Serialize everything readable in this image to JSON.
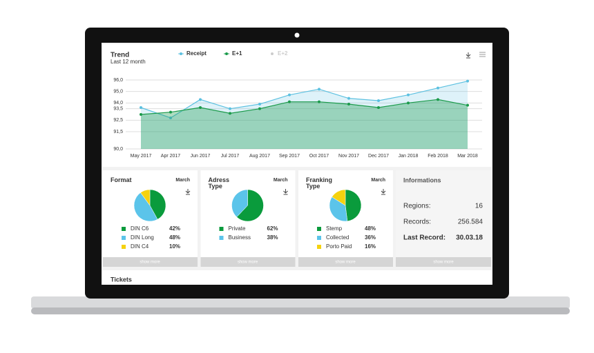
{
  "header": {
    "title": "Trend",
    "subtitle": "Last 12 month"
  },
  "chart_data": {
    "type": "line",
    "categories": [
      "May 2017",
      "Apr 2017",
      "Jun 2017",
      "Jul 2017",
      "Aug 2017",
      "Sep 2017",
      "Oct 2017",
      "Nov 2017",
      "Dec 2017",
      "Jan 2018",
      "Feb 2018",
      "Mar 2018"
    ],
    "series": [
      {
        "name": "Receipt",
        "color": "#5bc0e0",
        "values": [
          93.6,
          92.7,
          94.3,
          93.5,
          93.9,
          94.7,
          95.2,
          94.4,
          94.2,
          94.7,
          95.3,
          95.9
        ]
      },
      {
        "name": "E+1",
        "color": "#1a9a4a",
        "values": [
          93.0,
          93.2,
          93.6,
          93.1,
          93.5,
          94.1,
          94.1,
          93.9,
          93.6,
          94.0,
          94.3,
          93.8
        ]
      }
    ],
    "inactive_legend": "E+2",
    "ylim": [
      90,
      96
    ],
    "yticks": [
      {
        "value": 96,
        "label": "96,0"
      },
      {
        "value": 95,
        "label": "95,0"
      },
      {
        "value": 94,
        "label": "94,0"
      },
      {
        "value": 93.5,
        "label": "93,5"
      },
      {
        "value": 92.5,
        "label": "92,5"
      },
      {
        "value": 91.5,
        "label": "91,5"
      },
      {
        "value": 90,
        "label": "90,0"
      }
    ],
    "grid": true
  },
  "pies": [
    {
      "title": "Format",
      "period": "March",
      "categories": [
        "DIN C6",
        "DIN Long",
        "DIN C4"
      ],
      "values": [
        42,
        48,
        10
      ],
      "value_labels": [
        "42%",
        "48%",
        "10%"
      ],
      "colors": [
        "#0a9b3c",
        "#5bc4ea",
        "#f5d20f"
      ],
      "button": "show more"
    },
    {
      "title": "Adress Type",
      "period": "March",
      "categories": [
        "Private",
        "Business"
      ],
      "values": [
        62,
        38
      ],
      "value_labels": [
        "62%",
        "38%"
      ],
      "colors": [
        "#0a9b3c",
        "#5bc4ea"
      ],
      "button": "show more"
    },
    {
      "title": "Franking Type",
      "period": "March",
      "categories": [
        "Stemp",
        "Collected",
        "Porto Paid"
      ],
      "values": [
        48,
        36,
        16
      ],
      "value_labels": [
        "48%",
        "36%",
        "16%"
      ],
      "colors": [
        "#0a9b3c",
        "#5bc4ea",
        "#f5d20f"
      ],
      "button": "show more"
    }
  ],
  "info": {
    "title": "Informations",
    "rows": [
      [
        "Regions:",
        "16"
      ],
      [
        "Records:",
        "256.584"
      ],
      [
        "Last Record:",
        "30.03.18"
      ]
    ],
    "button": "show more"
  },
  "tickets": {
    "title": "Tickets"
  }
}
